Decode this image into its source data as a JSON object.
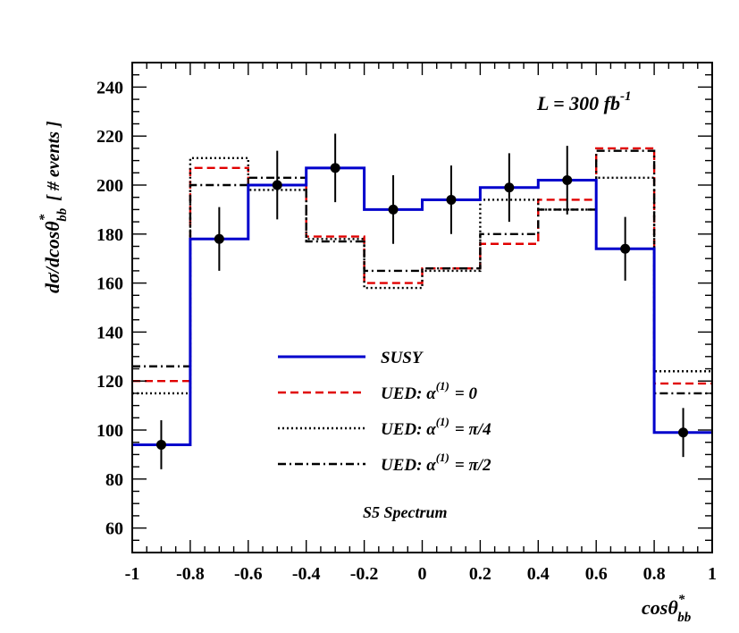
{
  "chart_data": {
    "type": "line",
    "title": "",
    "xlabel_main": "cosθ",
    "xlabel_sup": "*",
    "xlabel_sub": "bb",
    "ylabel_main": "dσ/dcosθ",
    "ylabel_sup": "*",
    "ylabel_sub": "bb",
    "ylabel_unit": "[ # events ]",
    "xlim": [
      -1,
      1
    ],
    "ylim": [
      50,
      250
    ],
    "x_ticks": [
      -1,
      -0.8,
      -0.6,
      -0.4,
      -0.2,
      0,
      0.2,
      0.4,
      0.6,
      0.8,
      1
    ],
    "x_tick_labels": [
      "-1",
      "-0.8",
      "-0.6",
      "-0.4",
      "-0.2",
      "0",
      "0.2",
      "0.4",
      "0.6",
      "0.8",
      "1"
    ],
    "y_ticks": [
      60,
      80,
      100,
      120,
      140,
      160,
      180,
      200,
      220,
      240
    ],
    "y_tick_labels": [
      "60",
      "80",
      "100",
      "120",
      "140",
      "160",
      "180",
      "200",
      "220",
      "240"
    ],
    "bin_edges": [
      -1,
      -0.8,
      -0.6,
      -0.4,
      -0.2,
      0,
      0.2,
      0.4,
      0.6,
      0.8,
      1
    ],
    "series": [
      {
        "name": "SUSY",
        "style": "solid",
        "color": "#0000cc",
        "values": [
          94,
          178,
          200,
          207,
          190,
          194,
          199,
          202,
          174,
          99
        ]
      },
      {
        "name": "UED: α(1) = 0",
        "style": "dashed",
        "color": "#e00000",
        "values": [
          120,
          207,
          200,
          179,
          160,
          166,
          176,
          194,
          215,
          119
        ]
      },
      {
        "name": "UED: α(1) = π/4",
        "style": "dotted",
        "color": "#000000",
        "values": [
          115,
          211,
          198,
          178,
          158,
          165,
          194,
          190,
          203,
          124
        ]
      },
      {
        "name": "UED: α(1) = π/2",
        "style": "dashdot",
        "color": "#000000",
        "values": [
          126,
          200,
          203,
          177,
          165,
          166,
          180,
          190,
          214,
          115
        ]
      }
    ],
    "data_points": {
      "x": [
        -0.9,
        -0.7,
        -0.5,
        -0.3,
        -0.1,
        0.1,
        0.3,
        0.5,
        0.7,
        0.9
      ],
      "y": [
        94,
        178,
        200,
        207,
        190,
        194,
        199,
        202,
        174,
        99
      ],
      "err": [
        10,
        13,
        14,
        14,
        14,
        14,
        14,
        14,
        13,
        10
      ]
    },
    "legend": {
      "placement": "center-left",
      "entries": [
        {
          "label_prefix": "SUSY",
          "label_sup": "",
          "label_suffix": "",
          "style": "solid",
          "color": "#0000cc"
        },
        {
          "label_prefix": "UED: α",
          "label_sup": "(1)",
          "label_suffix": "= 0",
          "style": "dashed",
          "color": "#e00000"
        },
        {
          "label_prefix": "UED: α",
          "label_sup": "(1)",
          "label_suffix": "= π/4",
          "style": "dotted",
          "color": "#000000"
        },
        {
          "label_prefix": "UED: α",
          "label_sup": "(1)",
          "label_suffix": "= π/2",
          "style": "dashdot",
          "color": "#000000"
        }
      ]
    },
    "annotations": {
      "luminosity_main": "L = 300 fb",
      "luminosity_sup": "-1",
      "spectrum": "S5 Spectrum"
    }
  }
}
